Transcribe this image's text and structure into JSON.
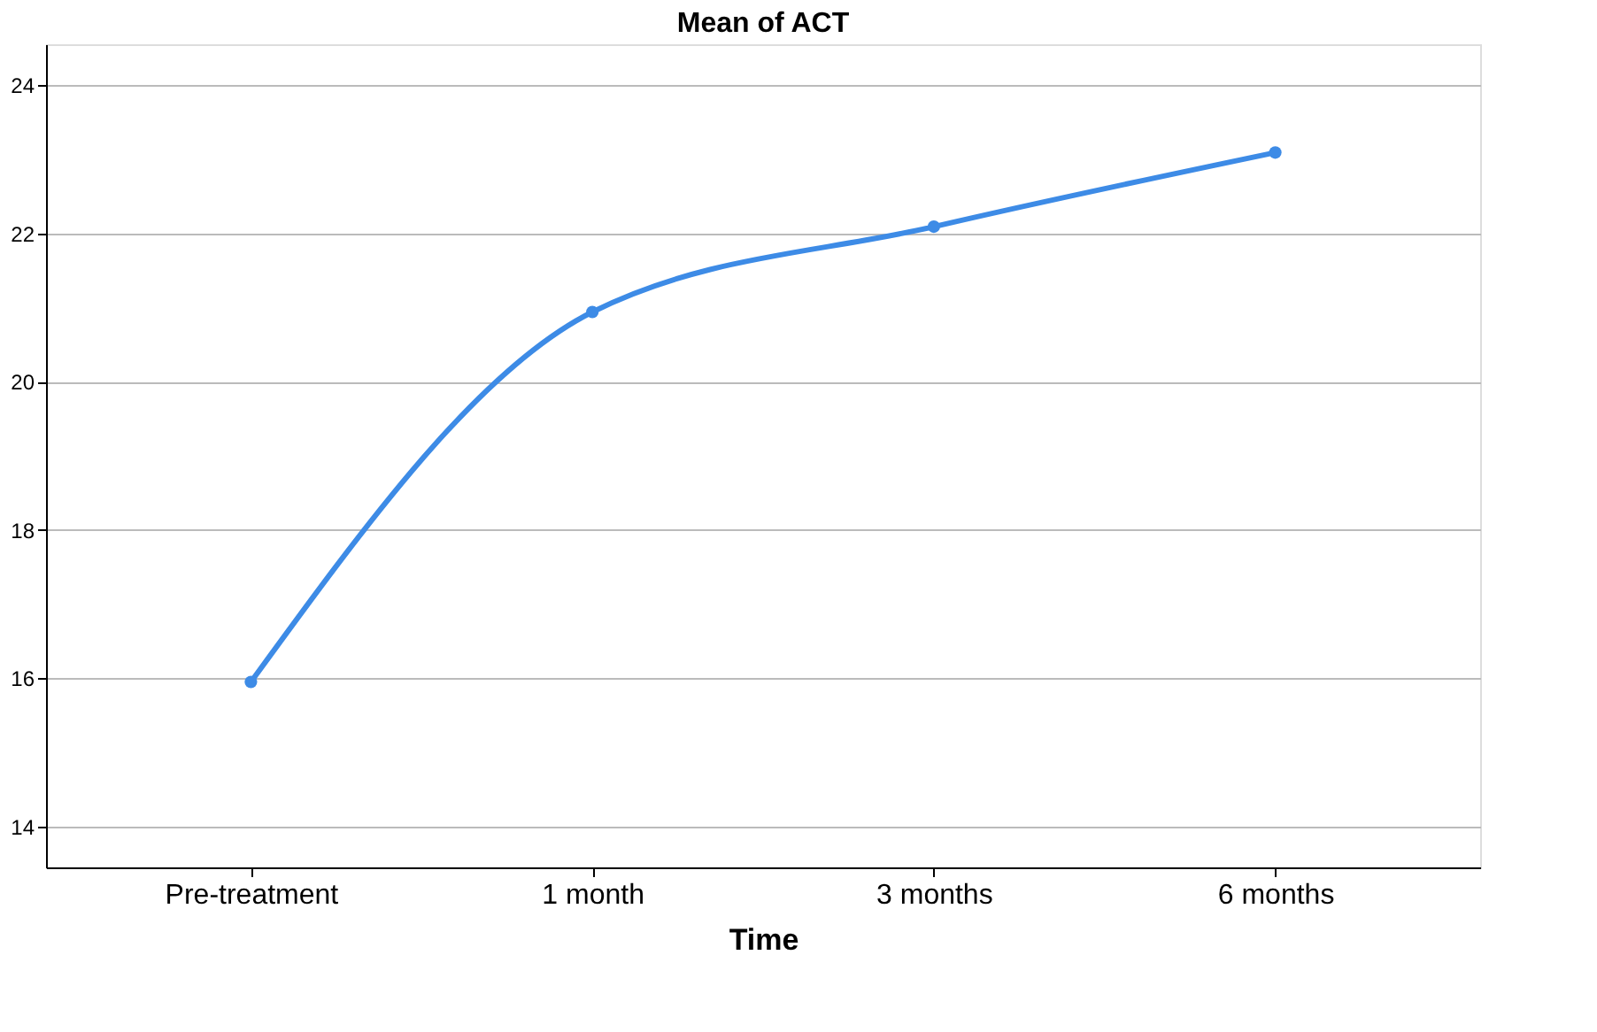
{
  "chart_data": {
    "type": "line",
    "title": "Mean of ACT",
    "xlabel": "Time",
    "categories": [
      "Pre-treatment",
      "1 month",
      "3 months",
      "6 months"
    ],
    "series": [
      {
        "color": "#3d8be6",
        "values": [
          15.95,
          20.94,
          22.09,
          23.09
        ]
      }
    ],
    "ylim": [
      13.45,
      24.55
    ],
    "yticks": [
      14,
      16,
      18,
      20,
      22,
      24
    ],
    "grid": "y",
    "marker": "circle",
    "line_style": "solid"
  }
}
